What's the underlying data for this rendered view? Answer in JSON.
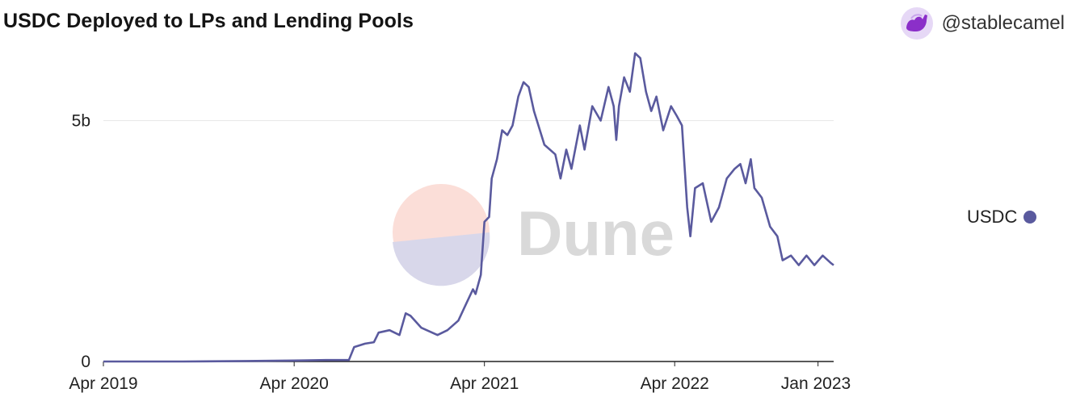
{
  "header": {
    "title": "USDC Deployed to LPs and Lending Pools",
    "author": "@stablecamel"
  },
  "watermark": {
    "text": "Dune"
  },
  "legend": {
    "items": [
      {
        "label": "USDC",
        "color": "#5a5a9e"
      }
    ]
  },
  "chart_data": {
    "type": "line",
    "title": "USDC Deployed to LPs and Lending Pools",
    "xlabel": "",
    "ylabel": "",
    "x_tick_labels": [
      "Apr 2019",
      "Apr 2020",
      "Apr 2021",
      "Apr 2022",
      "Jan 2023"
    ],
    "x_tick_dates": [
      "2019-04-01",
      "2020-04-01",
      "2021-04-01",
      "2022-04-01",
      "2023-01-01"
    ],
    "y_tick_labels": [
      "0",
      "5b"
    ],
    "y_tick_values": [
      0,
      5
    ],
    "y_unit": "billion USD",
    "xlim": [
      "2019-04-01",
      "2023-01-31"
    ],
    "ylim": [
      0,
      6.5
    ],
    "grid": true,
    "legend_position": "right",
    "series": [
      {
        "name": "USDC",
        "color": "#5a5a9e",
        "points": [
          [
            "2019-04-01",
            0.0
          ],
          [
            "2019-09-01",
            0.0
          ],
          [
            "2020-01-01",
            0.01
          ],
          [
            "2020-04-01",
            0.02
          ],
          [
            "2020-06-01",
            0.03
          ],
          [
            "2020-07-15",
            0.03
          ],
          [
            "2020-07-25",
            0.3
          ],
          [
            "2020-08-15",
            0.37
          ],
          [
            "2020-09-01",
            0.4
          ],
          [
            "2020-09-10",
            0.6
          ],
          [
            "2020-10-01",
            0.65
          ],
          [
            "2020-10-20",
            0.55
          ],
          [
            "2020-11-01",
            1.0
          ],
          [
            "2020-11-10",
            0.95
          ],
          [
            "2020-12-01",
            0.7
          ],
          [
            "2021-01-01",
            0.55
          ],
          [
            "2021-01-20",
            0.65
          ],
          [
            "2021-02-10",
            0.85
          ],
          [
            "2021-02-25",
            1.2
          ],
          [
            "2021-03-10",
            1.5
          ],
          [
            "2021-03-15",
            1.4
          ],
          [
            "2021-03-25",
            1.8
          ],
          [
            "2021-04-01",
            2.9
          ],
          [
            "2021-04-10",
            3.0
          ],
          [
            "2021-04-15",
            3.8
          ],
          [
            "2021-04-25",
            4.2
          ],
          [
            "2021-05-05",
            4.8
          ],
          [
            "2021-05-15",
            4.7
          ],
          [
            "2021-05-25",
            4.9
          ],
          [
            "2021-06-05",
            5.5
          ],
          [
            "2021-06-15",
            5.8
          ],
          [
            "2021-06-25",
            5.7
          ],
          [
            "2021-07-05",
            5.2
          ],
          [
            "2021-07-25",
            4.5
          ],
          [
            "2021-08-15",
            4.3
          ],
          [
            "2021-08-25",
            3.8
          ],
          [
            "2021-09-05",
            4.4
          ],
          [
            "2021-09-15",
            4.0
          ],
          [
            "2021-10-01",
            4.9
          ],
          [
            "2021-10-10",
            4.4
          ],
          [
            "2021-10-25",
            5.3
          ],
          [
            "2021-11-10",
            5.0
          ],
          [
            "2021-11-25",
            5.7
          ],
          [
            "2021-12-05",
            5.3
          ],
          [
            "2021-12-10",
            4.6
          ],
          [
            "2021-12-15",
            5.3
          ],
          [
            "2021-12-25",
            5.9
          ],
          [
            "2022-01-05",
            5.6
          ],
          [
            "2022-01-15",
            6.4
          ],
          [
            "2022-01-25",
            6.3
          ],
          [
            "2022-02-05",
            5.6
          ],
          [
            "2022-02-15",
            5.2
          ],
          [
            "2022-02-25",
            5.5
          ],
          [
            "2022-03-10",
            4.8
          ],
          [
            "2022-03-25",
            5.3
          ],
          [
            "2022-04-05",
            5.1
          ],
          [
            "2022-04-15",
            4.9
          ],
          [
            "2022-04-25",
            3.2
          ],
          [
            "2022-05-01",
            2.6
          ],
          [
            "2022-05-10",
            3.6
          ],
          [
            "2022-05-25",
            3.7
          ],
          [
            "2022-06-10",
            2.9
          ],
          [
            "2022-06-25",
            3.2
          ],
          [
            "2022-07-10",
            3.8
          ],
          [
            "2022-07-25",
            4.0
          ],
          [
            "2022-08-05",
            4.1
          ],
          [
            "2022-08-15",
            3.7
          ],
          [
            "2022-08-25",
            4.2
          ],
          [
            "2022-09-01",
            3.6
          ],
          [
            "2022-09-15",
            3.4
          ],
          [
            "2022-10-01",
            2.8
          ],
          [
            "2022-10-15",
            2.6
          ],
          [
            "2022-10-25",
            2.1
          ],
          [
            "2022-11-10",
            2.2
          ],
          [
            "2022-11-25",
            2.0
          ],
          [
            "2022-12-10",
            2.2
          ],
          [
            "2022-12-25",
            2.0
          ],
          [
            "2023-01-10",
            2.2
          ],
          [
            "2023-01-25",
            2.05
          ],
          [
            "2023-01-31",
            2.0
          ]
        ]
      }
    ]
  }
}
